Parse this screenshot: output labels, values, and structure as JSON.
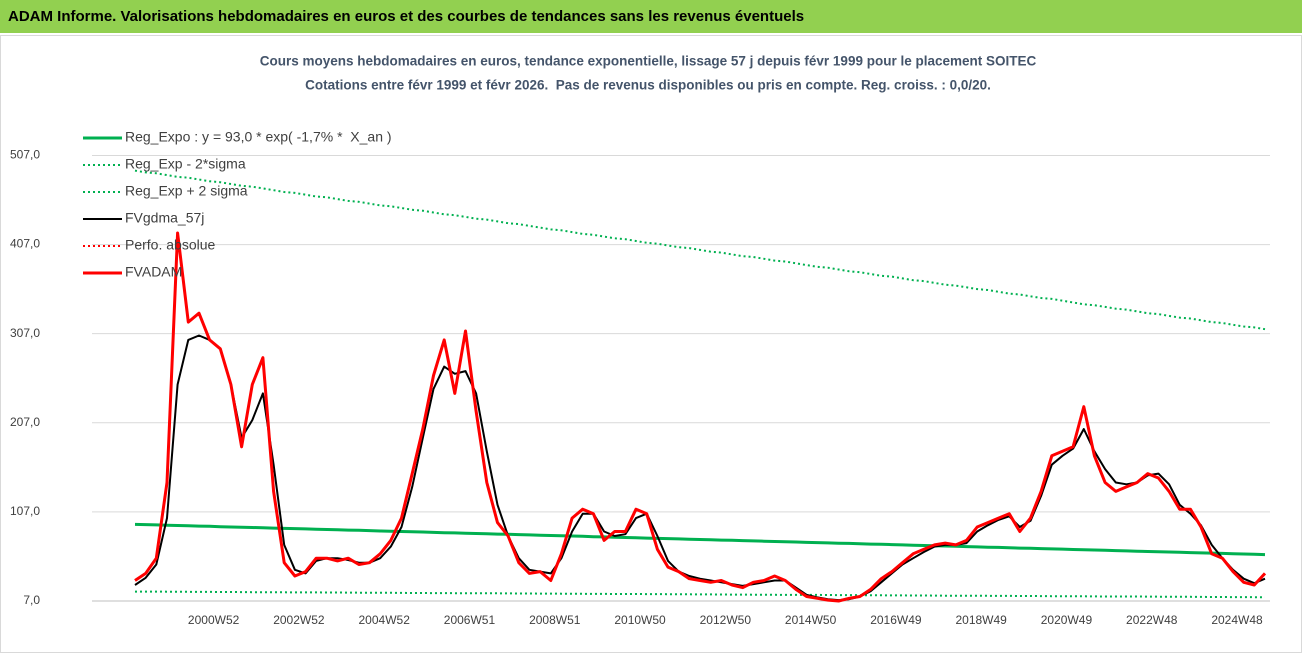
{
  "header": "ADAM Informe. Valorisations hebdomadaires en euros et des courbes de tendances sans les revenus éventuels",
  "chart_data": {
    "type": "line",
    "title": "Cours moyens hebdomadaires en euros, tendance exponentielle, lissage 57 j depuis févr 1999 pour le placement SOITEC",
    "subtitle": "Cotations entre févr 1999 et févr 2026.  Pas de revenus disponibles ou pris en compte. Reg. croiss. : 0,0/20.",
    "legend": "top-left",
    "grid": true,
    "ylim": [
      7,
      567
    ],
    "yticks": [
      {
        "value": 7,
        "label": "7,0"
      },
      {
        "value": 107,
        "label": "107,0"
      },
      {
        "value": 207,
        "label": "207,0"
      },
      {
        "value": 307,
        "label": "307,0"
      },
      {
        "value": 407,
        "label": "407,0"
      },
      {
        "value": 507,
        "label": "507,0"
      }
    ],
    "categories": [
      null,
      null,
      null,
      null,
      null,
      null,
      null,
      "2000W52",
      null,
      null,
      null,
      null,
      null,
      null,
      null,
      "2002W52",
      null,
      null,
      null,
      null,
      null,
      null,
      null,
      "2004W52",
      null,
      null,
      null,
      null,
      null,
      null,
      null,
      "2006W51",
      null,
      null,
      null,
      null,
      null,
      null,
      null,
      "2008W51",
      null,
      null,
      null,
      null,
      null,
      null,
      null,
      "2010W50",
      null,
      null,
      null,
      null,
      null,
      null,
      null,
      "2012W50",
      null,
      null,
      null,
      null,
      null,
      null,
      null,
      "2014W50",
      null,
      null,
      null,
      null,
      null,
      null,
      null,
      "2016W49",
      null,
      null,
      null,
      null,
      null,
      null,
      null,
      "2018W49",
      null,
      null,
      null,
      null,
      null,
      null,
      null,
      "2020W49",
      null,
      null,
      null,
      null,
      null,
      null,
      null,
      "2022W48",
      null,
      null,
      null,
      null,
      null,
      null,
      null,
      "2024W48",
      null,
      null,
      null
    ],
    "series": [
      {
        "name": "Reg_Expo : y = 93,0 * exp( -1,7% *  X_an )",
        "color": "#00b050",
        "line_style": "solid",
        "values": [
          93.0,
          92.7,
          92.4,
          92.0,
          91.7,
          91.4,
          91.1,
          90.8,
          90.4,
          90.1,
          89.8,
          89.5,
          89.2,
          88.8,
          88.5,
          88.2,
          87.9,
          87.6,
          87.2,
          86.9,
          86.6,
          86.3,
          86.0,
          85.6,
          85.3,
          85.0,
          84.7,
          84.4,
          84.0,
          83.7,
          83.4,
          83.1,
          82.8,
          82.4,
          82.1,
          81.8,
          81.5,
          81.2,
          80.8,
          80.5,
          80.2,
          79.9,
          79.6,
          79.2,
          78.9,
          78.6,
          78.3,
          78.0,
          77.6,
          77.3,
          77.0,
          76.7,
          76.4,
          76.0,
          75.7,
          75.4,
          75.1,
          74.8,
          74.4,
          74.1,
          73.8,
          73.5,
          73.2,
          72.8,
          72.5,
          72.2,
          71.9,
          71.6,
          71.2,
          70.9,
          70.6,
          70.3,
          70.0,
          69.6,
          69.3,
          69.0,
          68.7,
          68.4,
          68.0,
          67.7,
          67.4,
          67.1,
          66.8,
          66.4,
          66.1,
          65.8,
          65.5,
          65.2,
          64.8,
          64.5,
          64.2,
          63.9,
          63.6,
          63.2,
          62.9,
          62.6,
          62.3,
          62.0,
          61.6,
          61.3,
          61.0,
          60.7,
          60.4,
          60.0,
          59.7,
          59.4,
          59.1
        ]
      },
      {
        "name": "Reg_Exp - 2*sigma",
        "color": "#00b050",
        "line_style": "dotted",
        "values": [
          17.6,
          17.5,
          17.5,
          17.4,
          17.4,
          17.3,
          17.2,
          17.2,
          17.1,
          17.1,
          17.0,
          16.9,
          16.9,
          16.8,
          16.8,
          16.7,
          16.6,
          16.6,
          16.5,
          16.5,
          16.4,
          16.3,
          16.3,
          16.2,
          16.2,
          16.1,
          16.0,
          16.0,
          15.9,
          15.9,
          15.8,
          15.7,
          15.7,
          15.6,
          15.6,
          15.5,
          15.4,
          15.4,
          15.3,
          15.3,
          15.2,
          15.1,
          15.1,
          15.0,
          15.0,
          14.9,
          14.8,
          14.8,
          14.7,
          14.7,
          14.6,
          14.5,
          14.5,
          14.4,
          14.4,
          14.3,
          14.2,
          14.2,
          14.1,
          14.1,
          14.0,
          13.9,
          13.9,
          13.8,
          13.8,
          13.7,
          13.6,
          13.6,
          13.5,
          13.5,
          13.4,
          13.3,
          13.3,
          13.2,
          13.2,
          13.1,
          13.0,
          13.0,
          12.9,
          12.9,
          12.8,
          12.7,
          12.7,
          12.6,
          12.6,
          12.5,
          12.4,
          12.4,
          12.3,
          12.3,
          12.2,
          12.1,
          12.1,
          12.0,
          12.0,
          11.9,
          11.8,
          11.8,
          11.7,
          11.7,
          11.6,
          11.5,
          11.5,
          11.4,
          11.4,
          11.3,
          11.2
        ]
      },
      {
        "name": "Reg_Exp + 2 sigma",
        "color": "#00b050",
        "line_style": "dotted",
        "values": [
          490,
          488,
          487,
          485,
          483,
          482,
          480,
          478,
          477,
          475,
          473,
          472,
          470,
          468,
          466,
          465,
          463,
          461,
          460,
          458,
          456,
          455,
          453,
          451,
          450,
          448,
          446,
          445,
          443,
          441,
          440,
          438,
          436,
          435,
          433,
          431,
          430,
          428,
          426,
          424,
          423,
          421,
          419,
          418,
          416,
          414,
          413,
          411,
          409,
          408,
          406,
          404,
          403,
          401,
          399,
          398,
          396,
          394,
          393,
          391,
          389,
          388,
          386,
          384,
          382,
          381,
          379,
          377,
          376,
          374,
          372,
          371,
          369,
          367,
          366,
          364,
          362,
          361,
          359,
          357,
          356,
          354,
          352,
          351,
          349,
          347,
          346,
          344,
          342,
          340,
          339,
          337,
          335,
          334,
          332,
          330,
          329,
          327,
          325,
          324,
          322,
          320,
          319,
          317,
          315,
          314,
          312
        ]
      },
      {
        "name": "FVgdma_57j",
        "color": "#000000",
        "line_style": "solid",
        "values": [
          25,
          33,
          48,
          100,
          250,
          300,
          305,
          300,
          290,
          250,
          190,
          210,
          240,
          160,
          70,
          42,
          38,
          52,
          55,
          55,
          53,
          50,
          50,
          55,
          68,
          90,
          135,
          190,
          245,
          270,
          262,
          265,
          240,
          175,
          115,
          80,
          55,
          42,
          40,
          38,
          55,
          85,
          105,
          105,
          85,
          80,
          82,
          100,
          105,
          80,
          52,
          40,
          35,
          32,
          30,
          28,
          26,
          24,
          26,
          28,
          30,
          30,
          22,
          14,
          11,
          9,
          8,
          9,
          12,
          18,
          28,
          38,
          48,
          55,
          62,
          68,
          70,
          70,
          72,
          85,
          92,
          98,
          102,
          90,
          97,
          125,
          160,
          170,
          178,
          200,
          175,
          155,
          140,
          138,
          140,
          148,
          150,
          138,
          115,
          105,
          92,
          70,
          55,
          42,
          32,
          27,
          32
        ]
      },
      {
        "name": "Perfo. absolue",
        "color": "#ff0000",
        "line_style": "dotted",
        "values": [
          null,
          null,
          null,
          null,
          null,
          null,
          null,
          null,
          null,
          null,
          null,
          null,
          null,
          null,
          null,
          null,
          null,
          null,
          null,
          null,
          null,
          null,
          null,
          null,
          null,
          null,
          null,
          null,
          null,
          null,
          null,
          null,
          null,
          null,
          null,
          null,
          null,
          null,
          null,
          null,
          null,
          null,
          null,
          null,
          null,
          null,
          null,
          null,
          null,
          null,
          null,
          null,
          null,
          null,
          null,
          null,
          null,
          null,
          null,
          null,
          null,
          null,
          null,
          null,
          null,
          null,
          null,
          null,
          null,
          null,
          null,
          null,
          null,
          null,
          null,
          null,
          null,
          null,
          null,
          null,
          null,
          null,
          null,
          null,
          null,
          null,
          null,
          null,
          null,
          null,
          null,
          null,
          null,
          null,
          null,
          null,
          null,
          null,
          null,
          null,
          null,
          null,
          null,
          null,
          null,
          null,
          null
        ]
      },
      {
        "name": "FVADAM",
        "color": "#ff0000",
        "line_style": "solid",
        "values": [
          30,
          38,
          55,
          140,
          420,
          320,
          330,
          300,
          290,
          250,
          180,
          250,
          280,
          130,
          50,
          35,
          40,
          55,
          55,
          52,
          55,
          48,
          50,
          60,
          75,
          100,
          150,
          200,
          260,
          300,
          240,
          310,
          220,
          140,
          95,
          80,
          50,
          38,
          40,
          30,
          60,
          100,
          110,
          105,
          75,
          85,
          85,
          110,
          105,
          65,
          45,
          40,
          32,
          30,
          28,
          30,
          25,
          22,
          28,
          30,
          35,
          30,
          20,
          12,
          10,
          8,
          7,
          10,
          12,
          20,
          32,
          40,
          50,
          60,
          65,
          70,
          72,
          70,
          75,
          90,
          95,
          100,
          105,
          85,
          100,
          130,
          170,
          175,
          180,
          225,
          170,
          140,
          130,
          135,
          140,
          150,
          145,
          130,
          110,
          110,
          90,
          60,
          55,
          40,
          28,
          25,
          38
        ]
      }
    ]
  }
}
